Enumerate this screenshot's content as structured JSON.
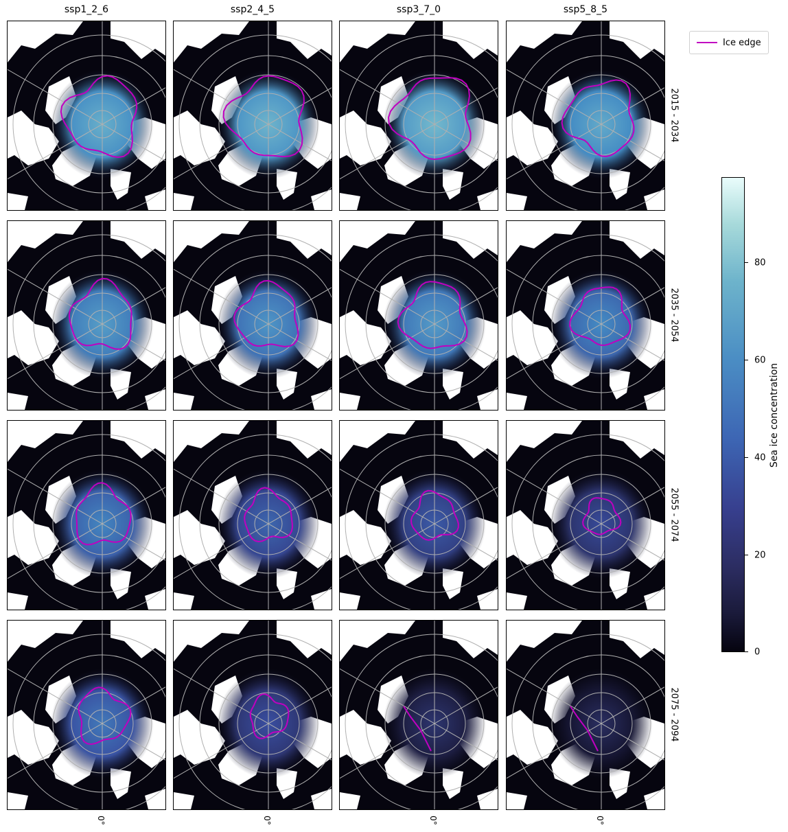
{
  "columns": [
    "ssp1_2_6",
    "ssp2_4_5",
    "ssp3_7_0",
    "ssp5_8_5"
  ],
  "rows": [
    "2015 - 2034",
    "2035 - 2054",
    "2055 - 2074",
    "2075 - 2094"
  ],
  "bottom_ticks": [
    "0°",
    "0°",
    "0°",
    "0°"
  ],
  "legend": {
    "label": "Ice edge",
    "color": "#c000c0"
  },
  "colorbar": {
    "title": "Sea ice concentration",
    "ticks": [
      "0",
      "20",
      "40",
      "60",
      "80"
    ],
    "range": [
      0,
      98
    ]
  },
  "panels": [
    [
      {
        "extent": 0.95,
        "level": 62
      },
      {
        "extent": 1.0,
        "level": 64
      },
      {
        "extent": 1.02,
        "level": 66
      },
      {
        "extent": 0.9,
        "level": 60
      }
    ],
    [
      {
        "extent": 0.82,
        "level": 55
      },
      {
        "extent": 0.8,
        "level": 52
      },
      {
        "extent": 0.83,
        "level": 54
      },
      {
        "extent": 0.72,
        "level": 48
      }
    ],
    [
      {
        "extent": 0.72,
        "level": 46
      },
      {
        "extent": 0.62,
        "level": 36
      },
      {
        "extent": 0.58,
        "level": 32
      },
      {
        "extent": 0.45,
        "level": 26
      }
    ],
    [
      {
        "extent": 0.66,
        "level": 42
      },
      {
        "extent": 0.5,
        "level": 28
      },
      {
        "extent": 0.0,
        "level": 14
      },
      {
        "extent": 0.0,
        "level": 10
      }
    ]
  ]
}
